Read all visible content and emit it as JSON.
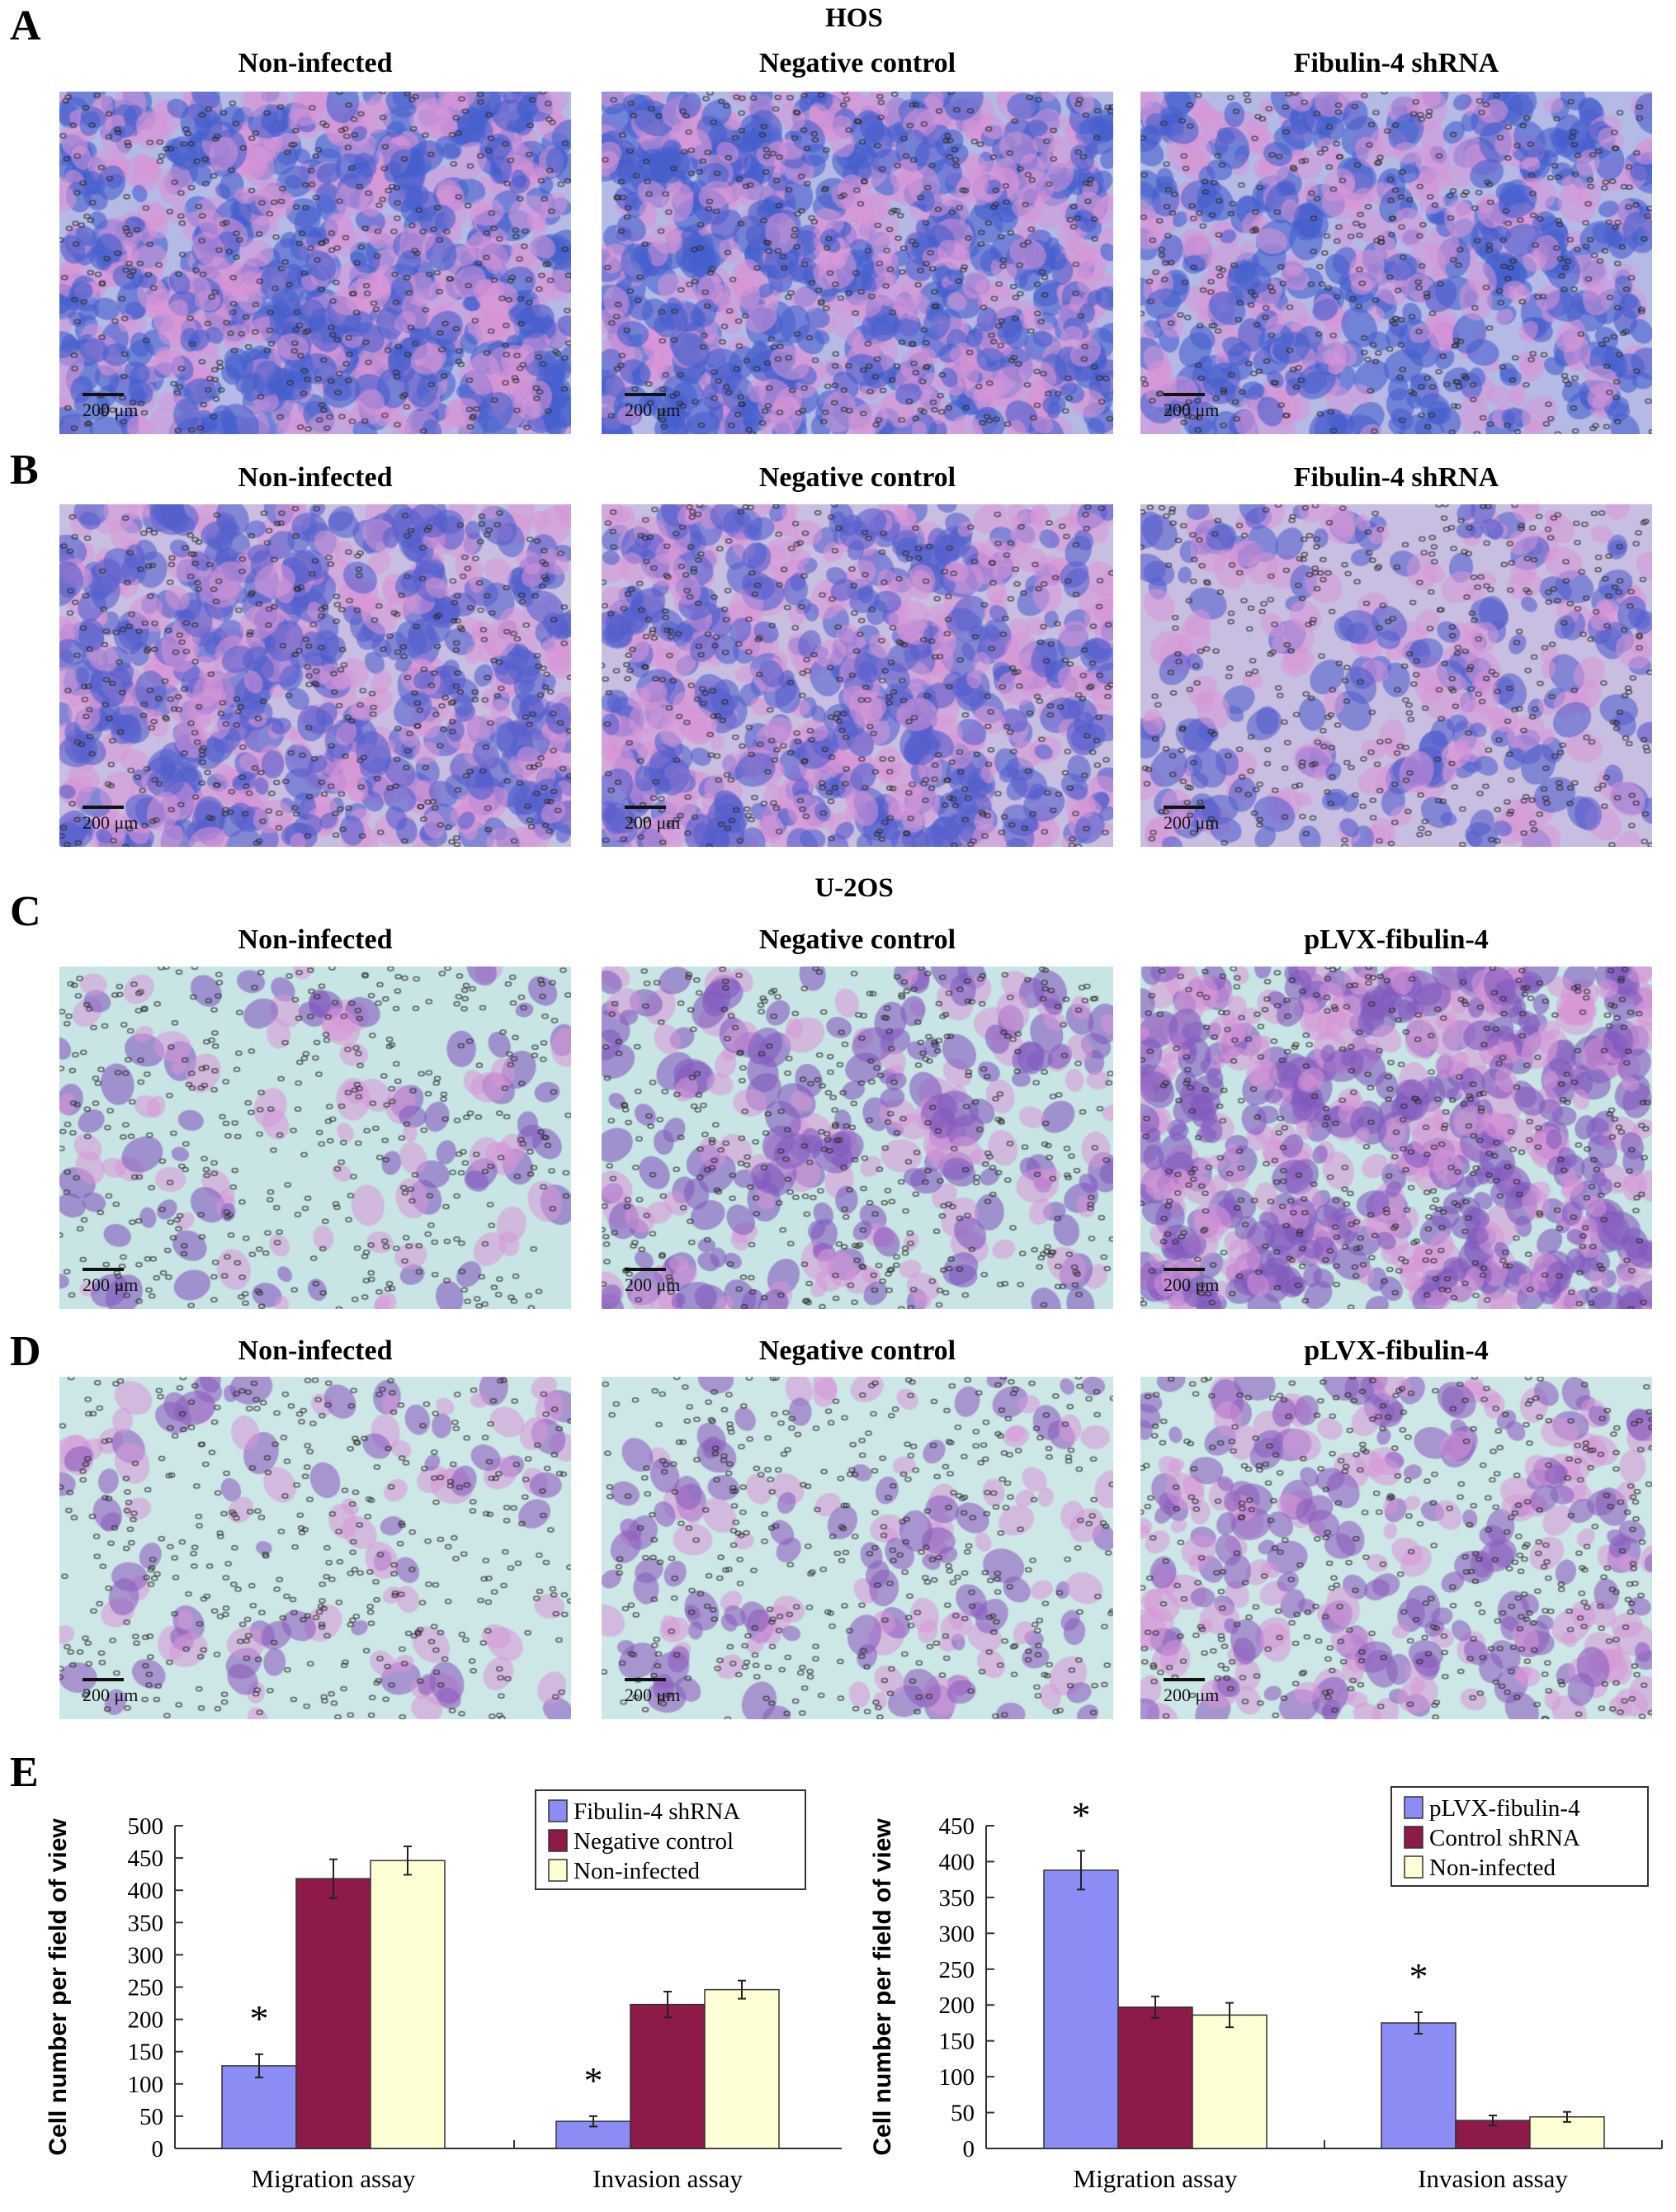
{
  "figure": {
    "panel_letters": [
      "A",
      "B",
      "C",
      "D",
      "E"
    ],
    "cell_lines": [
      "HOS",
      "U-2OS"
    ],
    "rows": [
      {
        "letter": "A",
        "titles": [
          "Non-infected",
          "Negative control",
          "Fibulin-4 shRNA"
        ]
      },
      {
        "letter": "B",
        "titles": [
          "Non-infected",
          "Negative control",
          "Fibulin-4 shRNA"
        ]
      },
      {
        "letter": "C",
        "titles": [
          "Non-infected",
          "Negative control",
          "pLVX-fibulin-4"
        ]
      },
      {
        "letter": "D",
        "titles": [
          "Non-infected",
          "Negative control",
          "pLVX-fibulin-4"
        ]
      }
    ],
    "scale_bar_label": "200 μm"
  },
  "chart_data": [
    {
      "type": "bar",
      "categories": [
        "Migration assay",
        "Invasion assay"
      ],
      "ylabel": "Cell number per field of view",
      "ylim": [
        0,
        500
      ],
      "yticks": [
        0,
        50,
        100,
        150,
        200,
        250,
        300,
        350,
        400,
        450,
        500
      ],
      "legend_position": "top-right",
      "series": [
        {
          "name": "Fibulin-4 shRNA",
          "color": "#8c8cf5",
          "values": [
            128,
            42
          ],
          "errors": [
            18,
            8
          ],
          "significance": [
            "*",
            "*"
          ]
        },
        {
          "name": "Negative control",
          "color": "#8e1a4a",
          "values": [
            418,
            223
          ],
          "errors": [
            30,
            20
          ],
          "significance": [
            "",
            ""
          ]
        },
        {
          "name": "Non-infected",
          "color": "#ffffd6",
          "values": [
            446,
            246
          ],
          "errors": [
            22,
            14
          ],
          "significance": [
            "",
            ""
          ]
        }
      ]
    },
    {
      "type": "bar",
      "categories": [
        "Migration assay",
        "Invasion assay"
      ],
      "ylabel": "Cell number per field of view",
      "ylim": [
        0,
        450
      ],
      "yticks": [
        0,
        50,
        100,
        150,
        200,
        250,
        300,
        350,
        400,
        450
      ],
      "legend_position": "top-right",
      "series": [
        {
          "name": "pLVX-fibulin-4",
          "color": "#8c8cf5",
          "values": [
            388,
            175
          ],
          "errors": [
            27,
            15
          ],
          "significance": [
            "*",
            "*"
          ]
        },
        {
          "name": "Control shRNA",
          "color": "#8e1a4a",
          "values": [
            197,
            39
          ],
          "errors": [
            15,
            7
          ],
          "significance": [
            "",
            ""
          ]
        },
        {
          "name": "Non-infected",
          "color": "#ffffd6",
          "values": [
            186,
            44
          ],
          "errors": [
            17,
            7
          ],
          "significance": [
            "",
            ""
          ]
        }
      ]
    }
  ]
}
